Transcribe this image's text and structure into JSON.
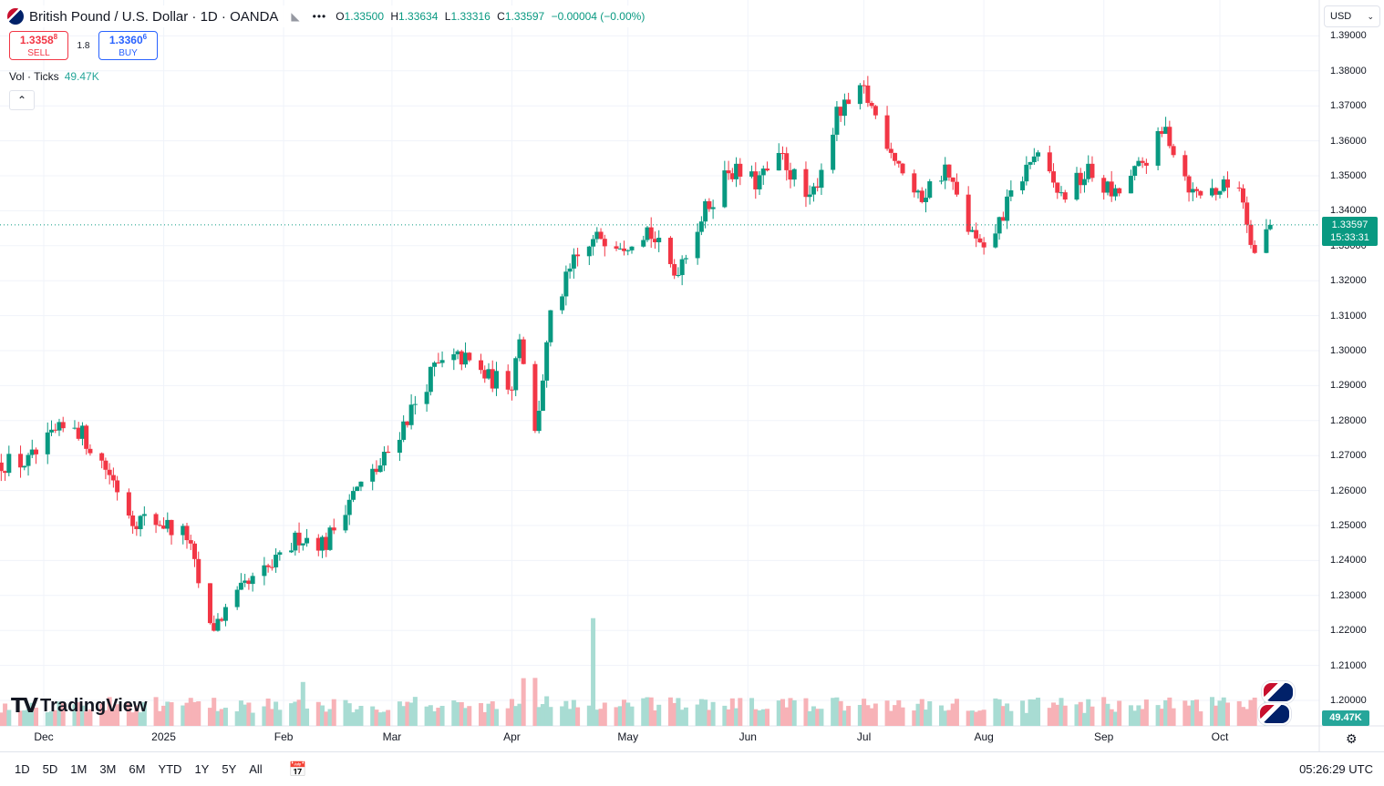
{
  "header": {
    "symbol_title": "British Pound / U.S. Dollar · 1D · OANDA",
    "ohlc": [
      {
        "key": "O",
        "value": "1.33500"
      },
      {
        "key": "H",
        "value": "1.33634"
      },
      {
        "key": "L",
        "value": "1.33316"
      },
      {
        "key": "C",
        "value": "1.33597"
      }
    ],
    "change": "−0.00004 (−0.00%)"
  },
  "trade": {
    "sell_price": "1.3358",
    "sell_price_sup": "8",
    "sell_label": "SELL",
    "spread": "1.8",
    "buy_price": "1.3360",
    "buy_price_sup": "6",
    "buy_label": "BUY"
  },
  "volume_legend": {
    "label": "Vol · Ticks",
    "value": "49.47K"
  },
  "currency": "USD",
  "last_price": {
    "price": "1.33597",
    "countdown": "15:33:31"
  },
  "volume_last": "49.47K",
  "brand": "TradingView",
  "range_buttons": [
    "1D",
    "5D",
    "1M",
    "3M",
    "6M",
    "YTD",
    "1Y",
    "5Y",
    "All"
  ],
  "clock": "05:26:29 UTC",
  "colors": {
    "up": "#089981",
    "down": "#f23645",
    "vol_up": "#a8dcd3",
    "vol_down": "#f7b2b7",
    "accent": "#2962ff"
  },
  "chart_data": {
    "type": "candlestick",
    "instrument": "British Pound / U.S. Dollar",
    "timeframe": "1D",
    "y_ticks": [
      "1.39000",
      "1.38000",
      "1.37000",
      "1.36000",
      "1.35000",
      "1.34000",
      "1.33000",
      "1.32000",
      "1.31000",
      "1.30000",
      "1.29000",
      "1.28000",
      "1.27000",
      "1.26000",
      "1.25000",
      "1.24000",
      "1.23000",
      "1.22000",
      "1.21000",
      "1.20000"
    ],
    "x_ticks": [
      {
        "label": "Dec",
        "date": "2024-12-01"
      },
      {
        "label": "2025",
        "date": "2025-01-01"
      },
      {
        "label": "Feb",
        "date": "2025-02-01"
      },
      {
        "label": "Mar",
        "date": "2025-03-01"
      },
      {
        "label": "Apr",
        "date": "2025-04-01"
      },
      {
        "label": "May",
        "date": "2025-05-01"
      },
      {
        "label": "Jun",
        "date": "2025-06-01"
      },
      {
        "label": "Jul",
        "date": "2025-07-01"
      },
      {
        "label": "Aug",
        "date": "2025-08-01"
      },
      {
        "label": "Sep",
        "date": "2025-09-01"
      },
      {
        "label": "Oct",
        "date": "2025-10-01"
      }
    ],
    "ylim": [
      1.1935,
      1.39
    ],
    "last_price": 1.33597,
    "close_path": [
      [
        "2024-11-20",
        1.268
      ],
      [
        "2024-11-27",
        1.268
      ],
      [
        "2024-12-04",
        1.276
      ],
      [
        "2024-12-09",
        1.279
      ],
      [
        "2024-12-18",
        1.265
      ],
      [
        "2024-12-24",
        1.252
      ],
      [
        "2024-12-31",
        1.251
      ],
      [
        "2025-01-07",
        1.247
      ],
      [
        "2025-01-13",
        1.22
      ],
      [
        "2025-01-22",
        1.232
      ],
      [
        "2025-01-31",
        1.24
      ],
      [
        "2025-02-05",
        1.247
      ],
      [
        "2025-02-12",
        1.245
      ],
      [
        "2025-02-18",
        1.258
      ],
      [
        "2025-02-26",
        1.267
      ],
      [
        "2025-03-04",
        1.279
      ],
      [
        "2025-03-12",
        1.295
      ],
      [
        "2025-03-19",
        1.298
      ],
      [
        "2025-03-26",
        1.292
      ],
      [
        "2025-04-01",
        1.291
      ],
      [
        "2025-04-03",
        1.305
      ],
      [
        "2025-04-07",
        1.276
      ],
      [
        "2025-04-11",
        1.309
      ],
      [
        "2025-04-17",
        1.325
      ],
      [
        "2025-04-24",
        1.333
      ],
      [
        "2025-04-30",
        1.331
      ],
      [
        "2025-05-06",
        1.335
      ],
      [
        "2025-05-13",
        1.322
      ],
      [
        "2025-05-20",
        1.338
      ],
      [
        "2025-05-27",
        1.352
      ],
      [
        "2025-06-03",
        1.348
      ],
      [
        "2025-06-10",
        1.355
      ],
      [
        "2025-06-17",
        1.342
      ],
      [
        "2025-06-24",
        1.367
      ],
      [
        "2025-07-01",
        1.374
      ],
      [
        "2025-07-08",
        1.358
      ],
      [
        "2025-07-15",
        1.343
      ],
      [
        "2025-07-22",
        1.352
      ],
      [
        "2025-07-28",
        1.335
      ],
      [
        "2025-08-01",
        1.327
      ],
      [
        "2025-08-08",
        1.344
      ],
      [
        "2025-08-14",
        1.356
      ],
      [
        "2025-08-21",
        1.344
      ],
      [
        "2025-08-28",
        1.351
      ],
      [
        "2025-09-04",
        1.344
      ],
      [
        "2025-09-10",
        1.352
      ],
      [
        "2025-09-17",
        1.363
      ],
      [
        "2025-09-24",
        1.345
      ],
      [
        "2025-09-30",
        1.346
      ],
      [
        "2025-10-06",
        1.348
      ],
      [
        "2025-10-10",
        1.328
      ],
      [
        "2025-10-14",
        1.336
      ]
    ],
    "volume_spikes": [
      [
        "2025-04-04",
        1.9
      ],
      [
        "2025-04-07",
        2.1
      ],
      [
        "2025-04-10",
        1.8
      ],
      [
        "2025-04-22",
        4.3
      ],
      [
        "2025-02-06",
        1.6
      ],
      [
        "2025-03-06",
        1.3
      ]
    ],
    "volume_last": "49.47K"
  }
}
